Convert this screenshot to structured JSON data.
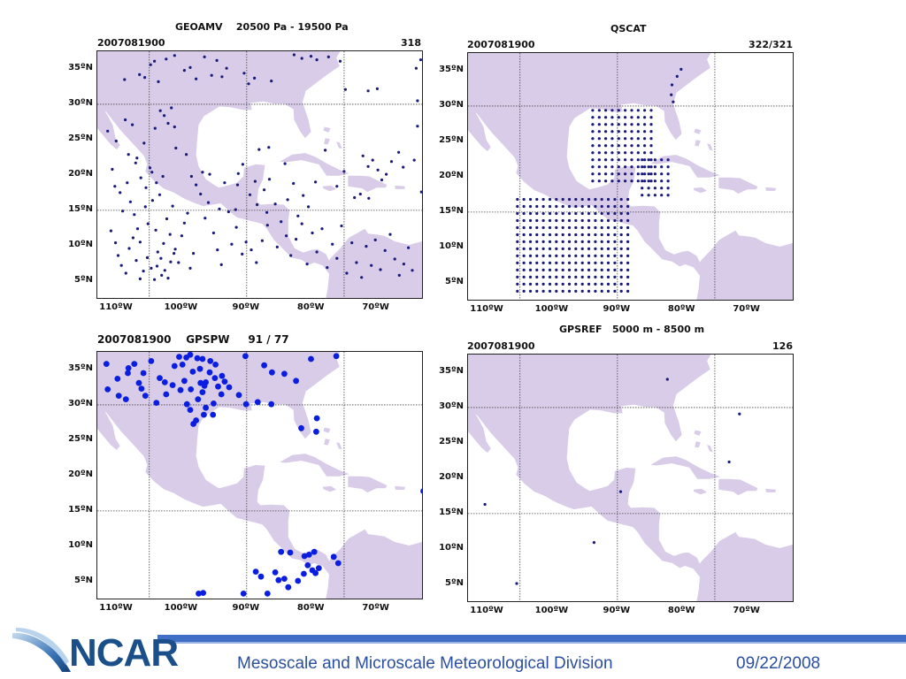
{
  "colors": {
    "land": "#d8cce8",
    "dot_small": "#1a1a7a",
    "dot_big": "#0a1ee0",
    "grid": "#444444",
    "footer_text": "#2b4fa0",
    "footer_bar": "#3f6fc6"
  },
  "axes": {
    "lat_labels": [
      "35ºN",
      "30ºN",
      "25ºN",
      "20ºN",
      "15ºN",
      "10ºN",
      "5ºN"
    ],
    "lon_labels": [
      "110ºW",
      "100ºW",
      "90ºW",
      "80ºW",
      "70ºW"
    ]
  },
  "panels": [
    {
      "id": "geoamv",
      "title": "GEOAMV    20500 Pa - 19500 Pa",
      "label": "2007081900",
      "count": "318",
      "dot_style": "small",
      "points": [
        [
          -108.8,
          33.5
        ],
        [
          -106.5,
          34.2
        ],
        [
          -105.7,
          33.8
        ],
        [
          -104.8,
          35.6
        ],
        [
          -104.2,
          36.1
        ],
        [
          -103.6,
          33.2
        ],
        [
          -102.4,
          36.4
        ],
        [
          -101.1,
          36.9
        ],
        [
          -99.6,
          34.8
        ],
        [
          -98.7,
          35.2
        ],
        [
          -97.8,
          33.6
        ],
        [
          -96.5,
          36.7
        ],
        [
          -95.4,
          34.1
        ],
        [
          -94.6,
          36.2
        ],
        [
          -93.8,
          33.9
        ],
        [
          -93.1,
          35.1
        ],
        [
          -90.4,
          34.4
        ],
        [
          -89.7,
          32.9
        ],
        [
          -88.8,
          33.7
        ],
        [
          -86.2,
          33.3
        ],
        [
          -82.7,
          37.0
        ],
        [
          -81.5,
          36.5
        ],
        [
          -80.1,
          36.8
        ],
        [
          -79.2,
          36.3
        ],
        [
          -77.4,
          36.7
        ],
        [
          -75.6,
          36.1
        ],
        [
          -74.8,
          32.1
        ],
        [
          -71.3,
          31.9
        ],
        [
          -69.9,
          32.2
        ],
        [
          -63.9,
          35.1
        ],
        [
          -63.2,
          36.3
        ],
        [
          -63.7,
          30.5
        ],
        [
          -111.4,
          26.2
        ],
        [
          -110.1,
          24.8
        ],
        [
          -108.7,
          27.8
        ],
        [
          -107.6,
          27.1
        ],
        [
          -106.9,
          22.4
        ],
        [
          -105.8,
          24.5
        ],
        [
          -104.9,
          21.0
        ],
        [
          -104.1,
          26.6
        ],
        [
          -103.3,
          29.1
        ],
        [
          -102.7,
          28.4
        ],
        [
          -102.1,
          27.3
        ],
        [
          -101.6,
          29.5
        ],
        [
          -101.1,
          26.8
        ],
        [
          -100.9,
          23.8
        ],
        [
          -99.3,
          22.9
        ],
        [
          -98.5,
          19.8
        ],
        [
          -97.8,
          18.6
        ],
        [
          -96.8,
          20.4
        ],
        [
          -95.7,
          20.1
        ],
        [
          -93.4,
          18.9
        ],
        [
          -91.4,
          18.6
        ],
        [
          -91.3,
          20.2
        ],
        [
          -90.6,
          21.5
        ],
        [
          -89.5,
          17.2
        ],
        [
          -88.7,
          19.1
        ],
        [
          -87.3,
          17.9
        ],
        [
          -86.5,
          19.4
        ],
        [
          -88.1,
          23.6
        ],
        [
          -86.6,
          23.9
        ],
        [
          -84.1,
          21.6
        ],
        [
          -82.8,
          18.8
        ],
        [
          -81.3,
          17.1
        ],
        [
          -79.4,
          19.0
        ],
        [
          -77.9,
          23.5
        ],
        [
          -76.1,
          18.4
        ],
        [
          -75.0,
          20.5
        ],
        [
          -73.4,
          16.8
        ],
        [
          -72.1,
          22.7
        ],
        [
          -71.3,
          21.2
        ],
        [
          -70.6,
          22.1
        ],
        [
          -69.8,
          20.7
        ],
        [
          -69.2,
          19.3
        ],
        [
          -68.5,
          20.1
        ],
        [
          -67.7,
          21.9
        ],
        [
          -66.6,
          23.2
        ],
        [
          -65.9,
          21.1
        ],
        [
          -64.2,
          22.1
        ],
        [
          -63.7,
          26.9
        ],
        [
          -63.1,
          17.6
        ],
        [
          -71.2,
          16.7
        ],
        [
          -72.5,
          17.3
        ],
        [
          -110.7,
          20.8
        ],
        [
          -110.3,
          18.4
        ],
        [
          -109.5,
          17.5
        ],
        [
          -109.1,
          14.9
        ],
        [
          -108.4,
          18.9
        ],
        [
          -107.9,
          16.2
        ],
        [
          -107.3,
          14.4
        ],
        [
          -106.8,
          12.4
        ],
        [
          -106.4,
          10.5
        ],
        [
          -105.6,
          15.5
        ],
        [
          -105.2,
          13.1
        ],
        [
          -104.5,
          16.4
        ],
        [
          -104.0,
          12.2
        ],
        [
          -103.7,
          9.1
        ],
        [
          -103.2,
          8.2
        ],
        [
          -102.8,
          10.3
        ],
        [
          -102.3,
          13.8
        ],
        [
          -101.8,
          11.6
        ],
        [
          -101.4,
          15.6
        ],
        [
          -101.0,
          9.5
        ],
        [
          -100.5,
          7.6
        ],
        [
          -100.0,
          11.4
        ],
        [
          -99.6,
          13.2
        ],
        [
          -99.1,
          14.6
        ],
        [
          -98.7,
          6.8
        ],
        [
          -98.2,
          8.9
        ],
        [
          -110.9,
          12.1
        ],
        [
          -110.2,
          10.4
        ],
        [
          -109.8,
          8.6
        ],
        [
          -109.3,
          7.2
        ],
        [
          -108.6,
          6.1
        ],
        [
          -108.1,
          9.6
        ],
        [
          -107.5,
          11.1
        ],
        [
          -107.0,
          7.9
        ],
        [
          -106.4,
          5.3
        ],
        [
          -105.9,
          6.4
        ],
        [
          -105.3,
          8.3
        ],
        [
          -104.7,
          6.8
        ],
        [
          -104.2,
          5.2
        ],
        [
          -103.8,
          7.1
        ],
        [
          -103.1,
          5.8
        ],
        [
          -102.6,
          6.5
        ],
        [
          -102.1,
          5.4
        ],
        [
          -101.7,
          7.7
        ],
        [
          -101.2,
          8.9
        ],
        [
          -96.4,
          13.9
        ],
        [
          -95.1,
          11.8
        ],
        [
          -94.5,
          9.4
        ],
        [
          -93.9,
          7.3
        ],
        [
          -92.3,
          10.2
        ],
        [
          -91.6,
          12.6
        ],
        [
          -90.7,
          8.8
        ],
        [
          -90.1,
          10.5
        ],
        [
          -89.3,
          9.4
        ],
        [
          -88.5,
          7.6
        ],
        [
          -87.6,
          10.7
        ],
        [
          -86.8,
          12.9
        ],
        [
          -85.3,
          9.8
        ],
        [
          -84.7,
          13.4
        ],
        [
          -83.9,
          11.4
        ],
        [
          -83.2,
          8.6
        ],
        [
          -82.4,
          10.9
        ],
        [
          -81.5,
          13.1
        ],
        [
          -80.7,
          7.4
        ],
        [
          -79.9,
          11.8
        ],
        [
          -79.2,
          9.1
        ],
        [
          -78.4,
          12.4
        ],
        [
          -77.6,
          6.9
        ],
        [
          -76.8,
          10.2
        ],
        [
          -76.1,
          8.2
        ],
        [
          -75.4,
          12.8
        ],
        [
          -74.6,
          6.1
        ],
        [
          -73.8,
          10.4
        ],
        [
          -73.1,
          7.6
        ],
        [
          -72.3,
          5.5
        ],
        [
          -71.6,
          9.9
        ],
        [
          -70.8,
          7.2
        ],
        [
          -70.2,
          10.8
        ],
        [
          -69.4,
          6.6
        ],
        [
          -68.7,
          9.3
        ],
        [
          -67.9,
          11.6
        ],
        [
          -67.2,
          8.1
        ],
        [
          -66.5,
          5.8
        ],
        [
          -65.8,
          7.4
        ],
        [
          -65.1,
          9.7
        ],
        [
          -64.5,
          6.5
        ],
        [
          -88.4,
          15.8
        ],
        [
          -86.9,
          14.7
        ],
        [
          -85.6,
          15.9
        ],
        [
          -83.7,
          16.5
        ],
        [
          -82.1,
          14.2
        ],
        [
          -80.5,
          15.5
        ],
        [
          -97.1,
          17.3
        ],
        [
          -95.9,
          16.1
        ],
        [
          -94.2,
          15.2
        ],
        [
          -92.8,
          14.8
        ],
        [
          -91.7,
          15.1
        ],
        [
          -108.2,
          22.9
        ],
        [
          -107.1,
          21.7
        ],
        [
          -106.3,
          19.6
        ],
        [
          -105.5,
          18.2
        ],
        [
          -104.6,
          20.4
        ],
        [
          -103.9,
          18.9
        ],
        [
          -103.4,
          17.2
        ],
        [
          -102.9,
          19.8
        ]
      ]
    },
    {
      "id": "qscat",
      "title": "QSCAT",
      "label": "2007081900",
      "count": "322/321",
      "dot_style": "small",
      "grids": [
        {
          "lon0": -93.8,
          "lon1": -84.8,
          "lat0": 19.4,
          "lat1": 29.4,
          "step": 1.0
        },
        {
          "lon0": -105.4,
          "lon1": -88.4,
          "lat0": 3.8,
          "lat1": 16.8,
          "step": 1.0
        },
        {
          "lon0": -86.2,
          "lon1": -82.2,
          "lat0": 17.4,
          "lat1": 22.4,
          "step": 1.0
        }
      ],
      "points": [
        [
          -81.6,
          33.0
        ],
        [
          -80.8,
          34.2
        ],
        [
          -80.2,
          35.2
        ],
        [
          -81.7,
          31.6
        ],
        [
          -81.4,
          30.6
        ]
      ]
    },
    {
      "id": "gpspw",
      "title": "",
      "label": "2007081900    GPSPW     91 / 77",
      "count": "",
      "dot_style": "big",
      "points": [
        [
          -111.6,
          35.8
        ],
        [
          -109.7,
          31.3
        ],
        [
          -111.4,
          32.2
        ],
        [
          -109.9,
          33.7
        ],
        [
          -108.3,
          34.5
        ],
        [
          -106.6,
          33.1
        ],
        [
          -105.9,
          34.5
        ],
        [
          -104.7,
          36.2
        ],
        [
          -103.4,
          33.8
        ],
        [
          -102.6,
          33.2
        ],
        [
          -101.4,
          32.8
        ],
        [
          -100.2,
          32.1
        ],
        [
          -99.6,
          33.4
        ],
        [
          -98.3,
          34.7
        ],
        [
          -97.2,
          35.1
        ],
        [
          -96.3,
          33.2
        ],
        [
          -95.7,
          34.6
        ],
        [
          -94.9,
          33.8
        ],
        [
          -93.8,
          34.1
        ],
        [
          -92.7,
          32.5
        ],
        [
          -99.2,
          30.1
        ],
        [
          -98.7,
          29.3
        ],
        [
          -97.5,
          30.8
        ],
        [
          -96.3,
          29.6
        ],
        [
          -95.1,
          30.2
        ],
        [
          -97.8,
          27.8
        ],
        [
          -98.2,
          27.3
        ],
        [
          -101.1,
          35.5
        ],
        [
          -100.4,
          36.8
        ],
        [
          -99.3,
          36.7
        ],
        [
          -98.7,
          37.1
        ],
        [
          -97.6,
          36.6
        ],
        [
          -96.8,
          36.5
        ],
        [
          -95.6,
          36.2
        ],
        [
          -94.8,
          35.7
        ],
        [
          -90.2,
          36.9
        ],
        [
          -87.3,
          35.6
        ],
        [
          -86.1,
          34.6
        ],
        [
          -84.2,
          34.4
        ],
        [
          -82.4,
          33.4
        ],
        [
          -80.1,
          36.5
        ],
        [
          -76.2,
          36.9
        ],
        [
          -79.2,
          28.1
        ],
        [
          -79.3,
          26.2
        ],
        [
          -81.6,
          26.7
        ],
        [
          -88.3,
          30.4
        ],
        [
          -90.1,
          30.1
        ],
        [
          -86.2,
          30.1
        ],
        [
          -108.2,
          35.2
        ],
        [
          -107.3,
          35.8
        ],
        [
          -99.9,
          35.7
        ],
        [
          -97.1,
          33.1
        ],
        [
          -96.5,
          32.7
        ],
        [
          -98.6,
          32.2
        ],
        [
          -103.9,
          30.3
        ],
        [
          -105.6,
          31.3
        ],
        [
          -106.2,
          32.3
        ],
        [
          -102.4,
          31.5
        ],
        [
          -96.8,
          31.8
        ],
        [
          -94.4,
          32.6
        ],
        [
          -93.4,
          33.3
        ],
        [
          -62.8,
          17.8
        ],
        [
          -76.6,
          8.5
        ],
        [
          -79.6,
          9.2
        ],
        [
          -81.1,
          8.6
        ],
        [
          -80.6,
          7.3
        ],
        [
          -79.9,
          6.6
        ],
        [
          -79.4,
          6.2
        ],
        [
          -78.9,
          6.9
        ],
        [
          -81.2,
          6.1
        ],
        [
          -82.1,
          5.1
        ],
        [
          -83.6,
          4.2
        ],
        [
          -84.2,
          5.4
        ],
        [
          -85.1,
          5.2
        ],
        [
          -85.6,
          6.3
        ],
        [
          -86.8,
          3.3
        ],
        [
          -87.8,
          5.7
        ],
        [
          -88.6,
          6.4
        ],
        [
          -84.7,
          9.2
        ],
        [
          -83.3,
          9.1
        ],
        [
          -80.4,
          8.8
        ],
        [
          -97.4,
          3.3
        ],
        [
          -96.7,
          3.4
        ],
        [
          -90.5,
          3.3
        ],
        [
          -75.9,
          7.6
        ],
        [
          -91.2,
          31.4
        ],
        [
          -93.9,
          31.5
        ],
        [
          -95.2,
          28.6
        ],
        [
          -96.6,
          28.6
        ],
        [
          -108.6,
          30.8
        ]
      ]
    },
    {
      "id": "gpsref",
      "title": "GPSREF   5000 m - 8500 m",
      "label": "2007081900",
      "count": "126",
      "dot_style": "small",
      "points": [
        [
          -82.3,
          34.0
        ],
        [
          -71.2,
          29.1
        ],
        [
          -72.8,
          22.3
        ],
        [
          -89.5,
          18.1
        ],
        [
          -110.4,
          16.3
        ],
        [
          -93.6,
          10.9
        ],
        [
          -105.5,
          5.1
        ]
      ]
    }
  ],
  "footer": {
    "logo_text": "NCAR",
    "division": "Mesoscale and Microscale Meteorological Division",
    "date": "09/22/2008"
  }
}
